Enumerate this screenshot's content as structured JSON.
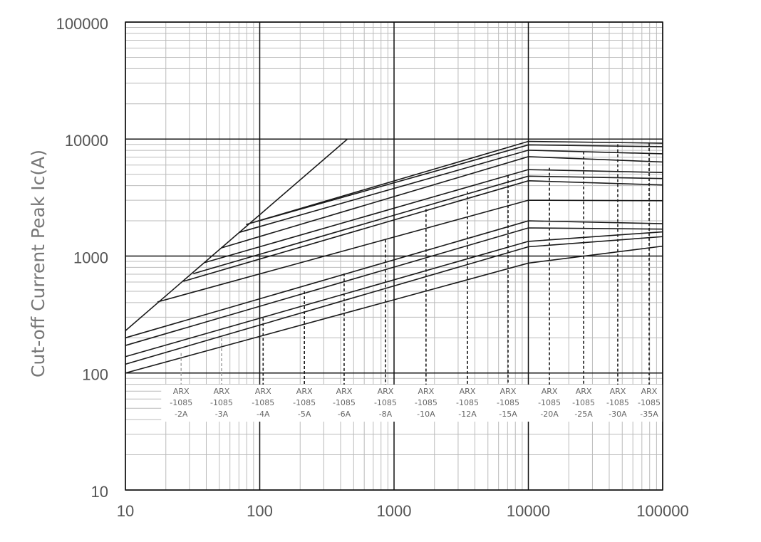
{
  "chart_data": {
    "type": "line",
    "y_label": "Cut-off Current Peak Ic(A)",
    "log_x": true,
    "log_y": true,
    "grid": true,
    "xlim": [
      10,
      100000
    ],
    "ylim": [
      10,
      100000
    ],
    "xticks": [
      10,
      100,
      1000,
      10000,
      100000
    ],
    "yticks": [
      10,
      100,
      1000,
      10000,
      100000
    ],
    "series": [
      {
        "color": "#1a1a1a",
        "x": [
          10,
          450
        ],
        "values": [
          230,
          10000
        ]
      },
      {
        "color": "#1a1a1a",
        "x": [
          10,
          10000,
          100000
        ],
        "values": [
          100,
          870,
          1215
        ]
      },
      {
        "color": "#1a1a1a",
        "x": [
          10,
          10000,
          100000
        ],
        "values": [
          119,
          1200,
          1465
        ]
      },
      {
        "color": "#1a1a1a",
        "x": [
          10,
          10000,
          100000
        ],
        "values": [
          138,
          1335,
          1610
        ]
      },
      {
        "color": "#1a1a1a",
        "x": [
          10,
          10000,
          100000
        ],
        "values": [
          172,
          1740,
          1700
        ]
      },
      {
        "color": "#1a1a1a",
        "x": [
          10,
          10000,
          100000
        ],
        "values": [
          200,
          2000,
          1890
        ]
      },
      {
        "color": "#1a1a1a",
        "x": [
          17.3,
          10000,
          100000
        ],
        "values": [
          405,
          3000,
          2970
        ]
      },
      {
        "color": "#1a1a1a",
        "x": [
          27,
          10000,
          100000
        ],
        "values": [
          608,
          4400,
          4050
        ]
      },
      {
        "color": "#1a1a1a",
        "x": [
          32,
          10000,
          100000
        ],
        "values": [
          707,
          4820,
          4600
        ]
      },
      {
        "color": "#1a1a1a",
        "x": [
          39,
          10000,
          100000
        ],
        "values": [
          880,
          5480,
          5180
        ]
      },
      {
        "color": "#1a1a1a",
        "x": [
          52,
          10000,
          100000
        ],
        "values": [
          1175,
          7070,
          6370
        ]
      },
      {
        "color": "#1a1a1a",
        "x": [
          70,
          10000,
          100000
        ],
        "values": [
          1590,
          8030,
          7480
        ]
      },
      {
        "color": "#1a1a1a",
        "x": [
          79,
          10000,
          100000
        ],
        "values": [
          1860,
          8910,
          8610
        ]
      },
      {
        "color": "#1a1a1a",
        "x": [
          95,
          10000,
          100000
        ],
        "values": [
          1980,
          9550,
          9220
        ]
      }
    ],
    "markers": {
      "colors": [
        "#aaaaaa",
        "#aaaaaa",
        "#1a1a1a",
        "#1a1a1a",
        "#1a1a1a",
        "#1a1a1a",
        "#1a1a1a",
        "#1a1a1a",
        "#1a1a1a",
        "#1a1a1a",
        "#1a1a1a",
        "#1a1a1a",
        "#1a1a1a"
      ],
      "x": [
        26,
        52,
        106,
        215,
        425,
        863,
        1730,
        3520,
        7060,
        14350,
        25800,
        46300,
        79300
      ],
      "values": [
        148,
        198,
        295,
        500,
        710,
        1380,
        2520,
        3560,
        4900,
        5680,
        7830,
        9020,
        9220
      ],
      "labels": [
        [
          "ARX",
          "-1085",
          "-2A"
        ],
        [
          "ARX",
          "-1085",
          "-3A"
        ],
        [
          "ARX",
          "-1085",
          "-4A"
        ],
        [
          "ARX",
          "-1085",
          "-5A"
        ],
        [
          "ARX",
          "-1085",
          "-6A"
        ],
        [
          "ARX",
          "-1085",
          "-8A"
        ],
        [
          "ARX",
          "-1085",
          "-10A"
        ],
        [
          "ARX",
          "-1085",
          "-12A"
        ],
        [
          "ARX",
          "-1085",
          "-15A"
        ],
        [
          "ARX",
          "-1085",
          "-20A"
        ],
        [
          "ARX",
          "-1085",
          "-25A"
        ],
        [
          "ARX",
          "-1085",
          "-30A"
        ],
        [
          "ARX",
          "-1085",
          "-35A"
        ]
      ]
    }
  }
}
